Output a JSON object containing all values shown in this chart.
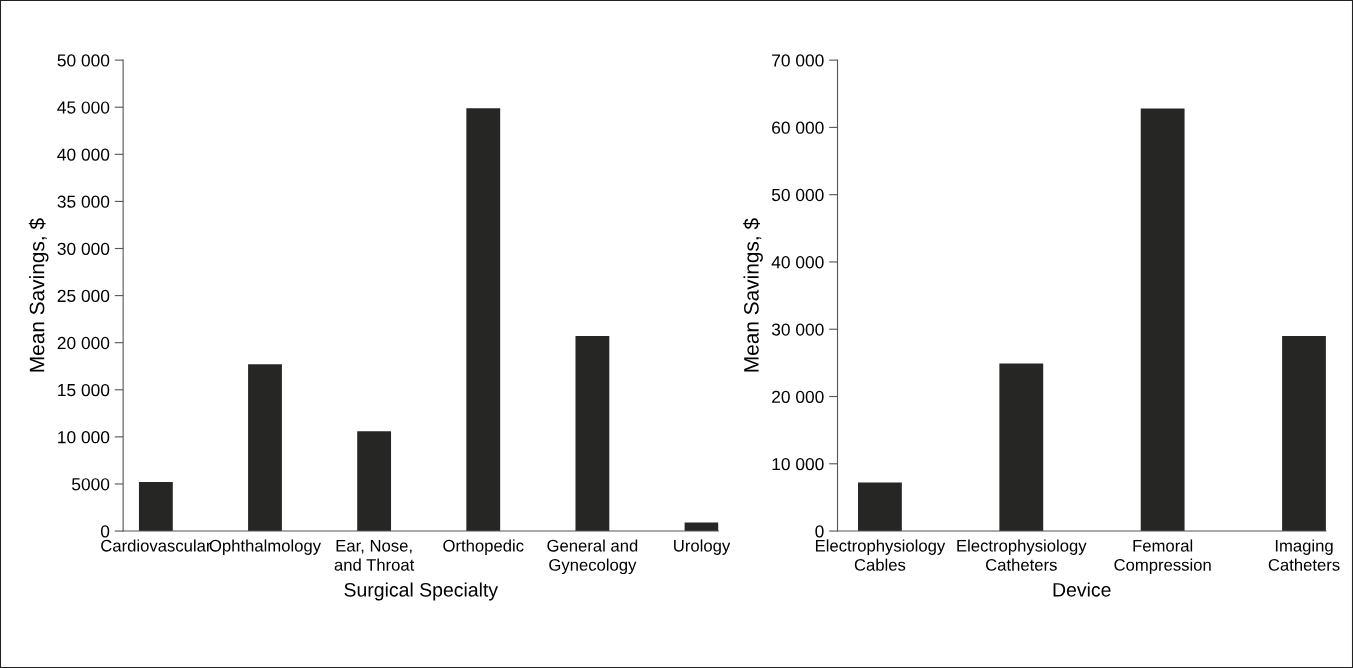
{
  "chart_data": [
    {
      "type": "bar",
      "categories": [
        "Cardiovascular",
        "Ophthalmology",
        "Ear, Nose,\nand Throat",
        "Orthopedic",
        "General and\nGynecology",
        "Urology"
      ],
      "values": [
        5200,
        17700,
        10600,
        44900,
        20700,
        900
      ],
      "color": "#262624",
      "xlabel": "Surgical Specialty",
      "ylabel": "Mean Savings, $",
      "ylim": [
        0,
        50000
      ],
      "yticks": [
        0,
        5000,
        {
          "value": 10000,
          "label": "10 000"
        },
        {
          "value": 15000,
          "label": "15 000"
        },
        {
          "value": 20000,
          "label": "20 000"
        },
        {
          "value": 25000,
          "label": "25 000"
        },
        {
          "value": 30000,
          "label": "30 000"
        },
        {
          "value": 35000,
          "label": "35 000"
        },
        {
          "value": 40000,
          "label": "40 000"
        },
        {
          "value": 45000,
          "label": "45 000"
        },
        {
          "value": 50000,
          "label": "50 000"
        }
      ],
      "grid": false,
      "legend": false
    },
    {
      "type": "bar",
      "categories": [
        "Electrophysiology\nCables",
        "Electrophysiology\nCatheters",
        "Femoral\nCompression",
        "Imaging\nCatheters"
      ],
      "values": [
        7200,
        24900,
        62800,
        29000
      ],
      "color": "#262624",
      "xlabel": "Device",
      "ylabel": "Mean Savings, $",
      "ylim": [
        0,
        70000
      ],
      "yticks": [
        0,
        {
          "value": 10000,
          "label": "10 000"
        },
        {
          "value": 20000,
          "label": "20 000"
        },
        {
          "value": 30000,
          "label": "30 000"
        },
        {
          "value": 40000,
          "label": "40 000"
        },
        {
          "value": 50000,
          "label": "50 000"
        },
        {
          "value": 60000,
          "label": "60 000"
        },
        {
          "value": 70000,
          "label": "70 000"
        }
      ],
      "grid": false,
      "legend": false
    }
  ]
}
